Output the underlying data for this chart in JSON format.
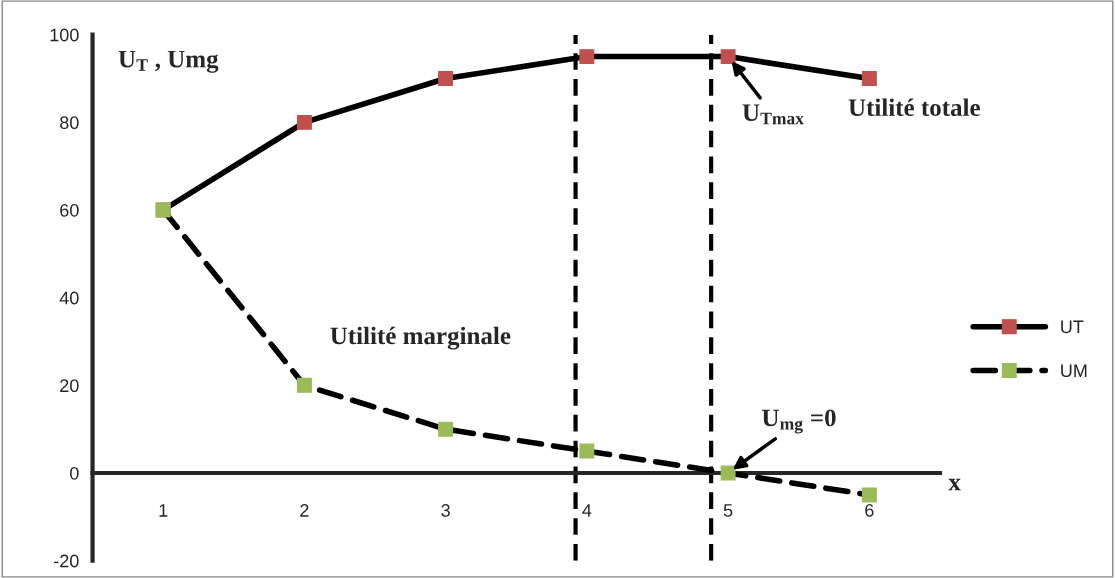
{
  "chart_data": {
    "type": "line",
    "x": [
      1,
      2,
      3,
      4,
      5,
      6
    ],
    "series": [
      {
        "name": "UT",
        "color": "#c0504d",
        "values": [
          60,
          80,
          90,
          95,
          95,
          90
        ],
        "line_style": "solid",
        "marker": "square"
      },
      {
        "name": "UM",
        "color": "#9bbb59",
        "values": [
          60,
          20,
          10,
          5,
          0,
          -5
        ],
        "line_style": "dashed",
        "marker": "square"
      }
    ],
    "xlim": [
      0.5,
      6.5
    ],
    "xticks": [
      1,
      2,
      3,
      4,
      5,
      6
    ],
    "ylim": [
      -20,
      100
    ],
    "yticks": [
      -20,
      0,
      20,
      40,
      60,
      80,
      100
    ],
    "xlabel": "x",
    "ylabel": "U$_{T}$ , Umg",
    "ref_lines": [
      {
        "axis": "x",
        "value": 3.92,
        "line_style": "dashed",
        "color": "#000000"
      },
      {
        "axis": "x",
        "value": 4.88,
        "line_style": "dashed",
        "color": "#000000"
      }
    ],
    "annotations": [
      "Utilité totale",
      {
        "text": "U$_{Tmax}$",
        "x": 5,
        "y": 95
      },
      "Utilité marginale",
      {
        "text": "U$_{mg}$ =0",
        "x": 5,
        "y": 0
      }
    ],
    "legend": "right",
    "grid": false
  }
}
